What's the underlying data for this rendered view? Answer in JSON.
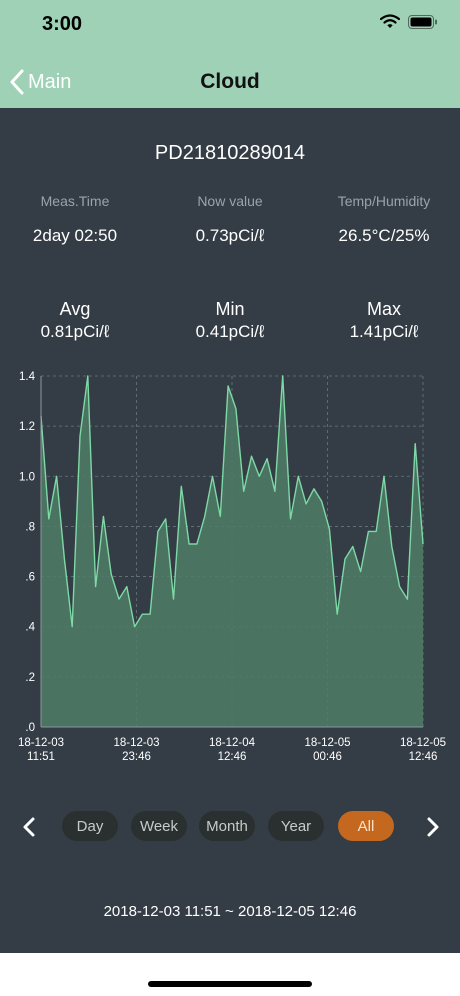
{
  "status_bar": {
    "time": "3:00"
  },
  "nav": {
    "back_label": "Main",
    "title": "Cloud"
  },
  "device": {
    "id": "PD21810289014"
  },
  "info": [
    {
      "label": "Meas.Time",
      "value": "2day 02:50"
    },
    {
      "label": "Now value",
      "value": "0.73pCi/ℓ"
    },
    {
      "label": "Temp/Humidity",
      "value": "26.5°C/25%"
    }
  ],
  "stats": [
    {
      "label": "Avg",
      "value": "0.81pCi/ℓ"
    },
    {
      "label": "Min",
      "value": "0.41pCi/ℓ"
    },
    {
      "label": "Max",
      "value": "1.41pCi/ℓ"
    }
  ],
  "colors": {
    "header": "#9fd1b6",
    "background": "#343d45",
    "line": "#7ed9a6",
    "fill": "#4f7c67",
    "active_tab": "#c4681f"
  },
  "chart_data": {
    "type": "area",
    "ylim": [
      0,
      1.4
    ],
    "yticks": [
      ".0",
      ".2",
      ".4",
      ".6",
      ".8",
      "1.0",
      "1.2",
      "1.4"
    ],
    "xticks": [
      {
        "date": "18-12-03",
        "time": "11:51"
      },
      {
        "date": "18-12-03",
        "time": "23:46"
      },
      {
        "date": "18-12-04",
        "time": "12:46"
      },
      {
        "date": "18-12-05",
        "time": "00:46"
      },
      {
        "date": "18-12-05",
        "time": "12:46"
      }
    ],
    "grid": true,
    "values": [
      1.24,
      0.83,
      1.0,
      0.67,
      0.4,
      1.16,
      1.4,
      0.56,
      0.84,
      0.61,
      0.51,
      0.56,
      0.4,
      0.45,
      0.45,
      0.78,
      0.83,
      0.51,
      0.96,
      0.73,
      0.73,
      0.84,
      1.0,
      0.84,
      1.36,
      1.27,
      0.94,
      1.08,
      1.0,
      1.07,
      0.94,
      1.4,
      0.83,
      1.0,
      0.89,
      0.95,
      0.9,
      0.79,
      0.45,
      0.67,
      0.72,
      0.62,
      0.78,
      0.78,
      1.0,
      0.72,
      0.56,
      0.51,
      1.13,
      0.73
    ]
  },
  "periods": [
    "Day",
    "Week",
    "Month",
    "Year",
    "All"
  ],
  "selected_period": "All",
  "range": "2018-12-03 11:51 ~ 2018-12-05 12:46"
}
